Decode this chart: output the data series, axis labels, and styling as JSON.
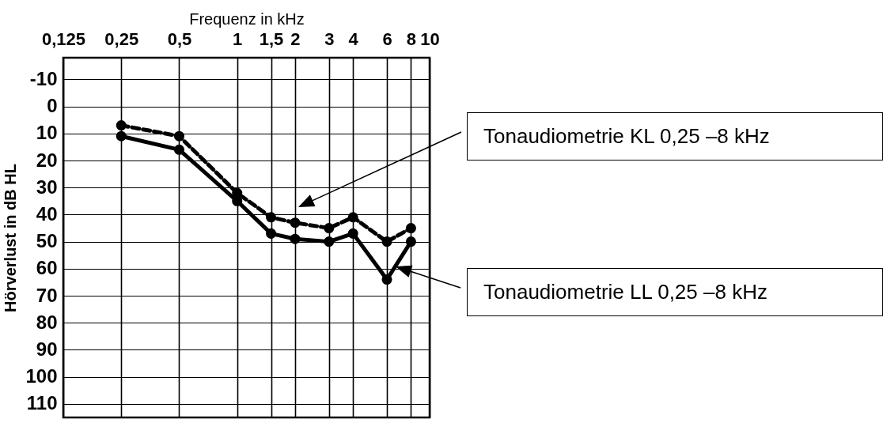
{
  "chart_data": {
    "type": "line",
    "xlabel": "Frequenz in kHz",
    "ylabel": "Hörverlust in dB HL",
    "log": "x",
    "xlim": [
      0.125,
      10
    ],
    "ylim": [
      115,
      -18
    ],
    "xticks": [
      {
        "value": 0.125,
        "label": "0,125"
      },
      {
        "value": 0.25,
        "label": "0,25"
      },
      {
        "value": 0.5,
        "label": "0,5"
      },
      1,
      {
        "value": 1.5,
        "label": "1,5"
      },
      2,
      3,
      4,
      6,
      8,
      10
    ],
    "yticks": [
      -10,
      0,
      10,
      20,
      30,
      40,
      50,
      60,
      70,
      80,
      90,
      100,
      110
    ],
    "grid": true,
    "marker": "circle",
    "series": [
      {
        "x": [
          0.25,
          0.5,
          1,
          1.5,
          2,
          3,
          4,
          6,
          8
        ],
        "values": [
          11,
          16,
          35,
          47,
          49,
          50,
          47,
          64,
          50
        ],
        "color": "#000000",
        "line_style": "solid"
      },
      {
        "x": [
          0.25,
          0.5,
          1,
          1.5,
          2,
          3,
          4,
          6,
          8
        ],
        "values": [
          7,
          11,
          32,
          41,
          43,
          45,
          41,
          50,
          45
        ],
        "color": "#000000",
        "line_style": "dashed"
      }
    ],
    "annotations": [
      "Tonaudiometrie KL 0,25 –8 kHz",
      "Tonaudiometrie LL 0,25 –8 kHz"
    ]
  }
}
